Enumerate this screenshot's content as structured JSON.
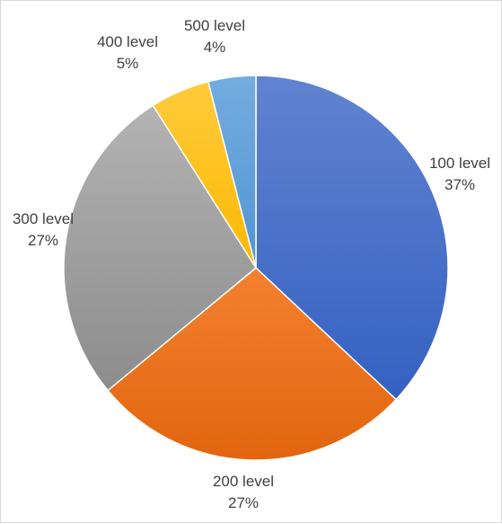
{
  "chart_data": {
    "type": "pie",
    "title": "",
    "categories": [
      "100 level",
      "200 level",
      "300 level",
      "400 level",
      "500 level"
    ],
    "values": [
      37,
      27,
      27,
      5,
      4
    ],
    "percent_labels": [
      "37%",
      "27%",
      "27%",
      "5%",
      "4%"
    ],
    "colors": [
      {
        "light": "#6183d0",
        "dark": "#3461c2"
      },
      {
        "light": "#f3812f",
        "dark": "#e2650f"
      },
      {
        "light": "#b3b3b3",
        "dark": "#8c8c8c"
      },
      {
        "light": "#ffcb3c",
        "dark": "#fbb903"
      },
      {
        "light": "#74acdf",
        "dark": "#5195d4"
      }
    ],
    "legend": "none",
    "start_angle": "12 o'clock, clockwise",
    "data_labels": "category name and percentage"
  }
}
